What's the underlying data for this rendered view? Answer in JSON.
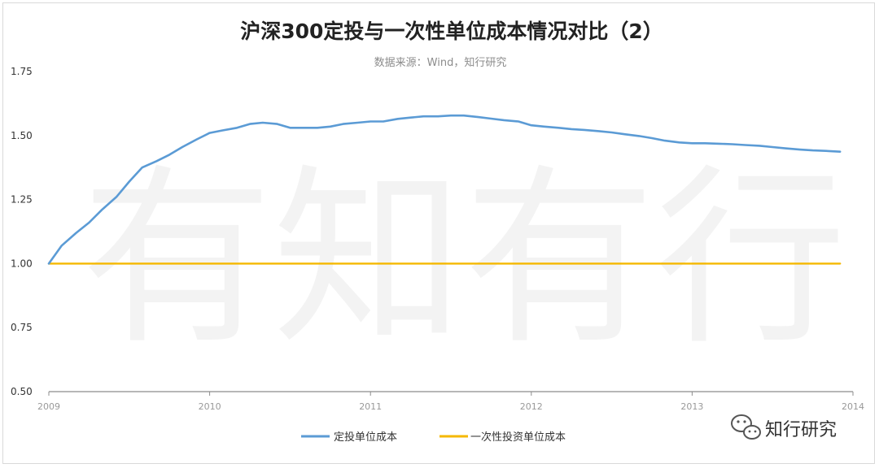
{
  "chart_data": {
    "type": "line",
    "title": "沪深300定投与一次性单位成本情况对比（2）",
    "subtitle": "数据来源：Wind，知行研究",
    "watermark": "有知有行",
    "xlabel": "",
    "ylabel": "",
    "x_range": [
      2009,
      2014
    ],
    "x_ticks": [
      "2009",
      "2010",
      "2011",
      "2012",
      "2013",
      "2014"
    ],
    "ylim": [
      0.5,
      1.75
    ],
    "y_ticks": [
      "0.50",
      "0.75",
      "1.00",
      "1.25",
      "1.50",
      "1.75"
    ],
    "grid": false,
    "legend_position": "bottom",
    "series": [
      {
        "name": "定投单位成本",
        "color": "#5b9bd5",
        "x": [
          2009.0,
          2009.08,
          2009.17,
          2009.25,
          2009.33,
          2009.42,
          2009.5,
          2009.58,
          2009.67,
          2009.75,
          2009.83,
          2009.92,
          2010.0,
          2010.08,
          2010.17,
          2010.25,
          2010.33,
          2010.42,
          2010.5,
          2010.58,
          2010.67,
          2010.75,
          2010.83,
          2010.92,
          2011.0,
          2011.08,
          2011.17,
          2011.25,
          2011.33,
          2011.42,
          2011.5,
          2011.58,
          2011.67,
          2011.75,
          2011.83,
          2011.92,
          2012.0,
          2012.08,
          2012.17,
          2012.25,
          2012.33,
          2012.42,
          2012.5,
          2012.58,
          2012.67,
          2012.75,
          2012.83,
          2012.92,
          2013.0,
          2013.08,
          2013.17,
          2013.25,
          2013.33,
          2013.42,
          2013.5,
          2013.58,
          2013.67,
          2013.75,
          2013.83,
          2013.92
        ],
        "values": [
          1.0,
          1.07,
          1.12,
          1.16,
          1.21,
          1.26,
          1.32,
          1.375,
          1.4,
          1.425,
          1.455,
          1.485,
          1.51,
          1.52,
          1.53,
          1.545,
          1.55,
          1.545,
          1.53,
          1.53,
          1.53,
          1.535,
          1.545,
          1.55,
          1.555,
          1.555,
          1.565,
          1.57,
          1.575,
          1.575,
          1.578,
          1.578,
          1.572,
          1.566,
          1.56,
          1.555,
          1.54,
          1.535,
          1.53,
          1.525,
          1.522,
          1.517,
          1.512,
          1.505,
          1.498,
          1.49,
          1.48,
          1.473,
          1.47,
          1.47,
          1.468,
          1.466,
          1.463,
          1.46,
          1.455,
          1.45,
          1.445,
          1.442,
          1.44,
          1.437
        ]
      },
      {
        "name": "一次性投资单位成本",
        "color": "#f5b800",
        "x": [
          2009.0,
          2013.92
        ],
        "values": [
          1.0,
          1.0
        ]
      }
    ]
  },
  "wechat_label": "知行研究",
  "axis_color": "#8c8c8c"
}
